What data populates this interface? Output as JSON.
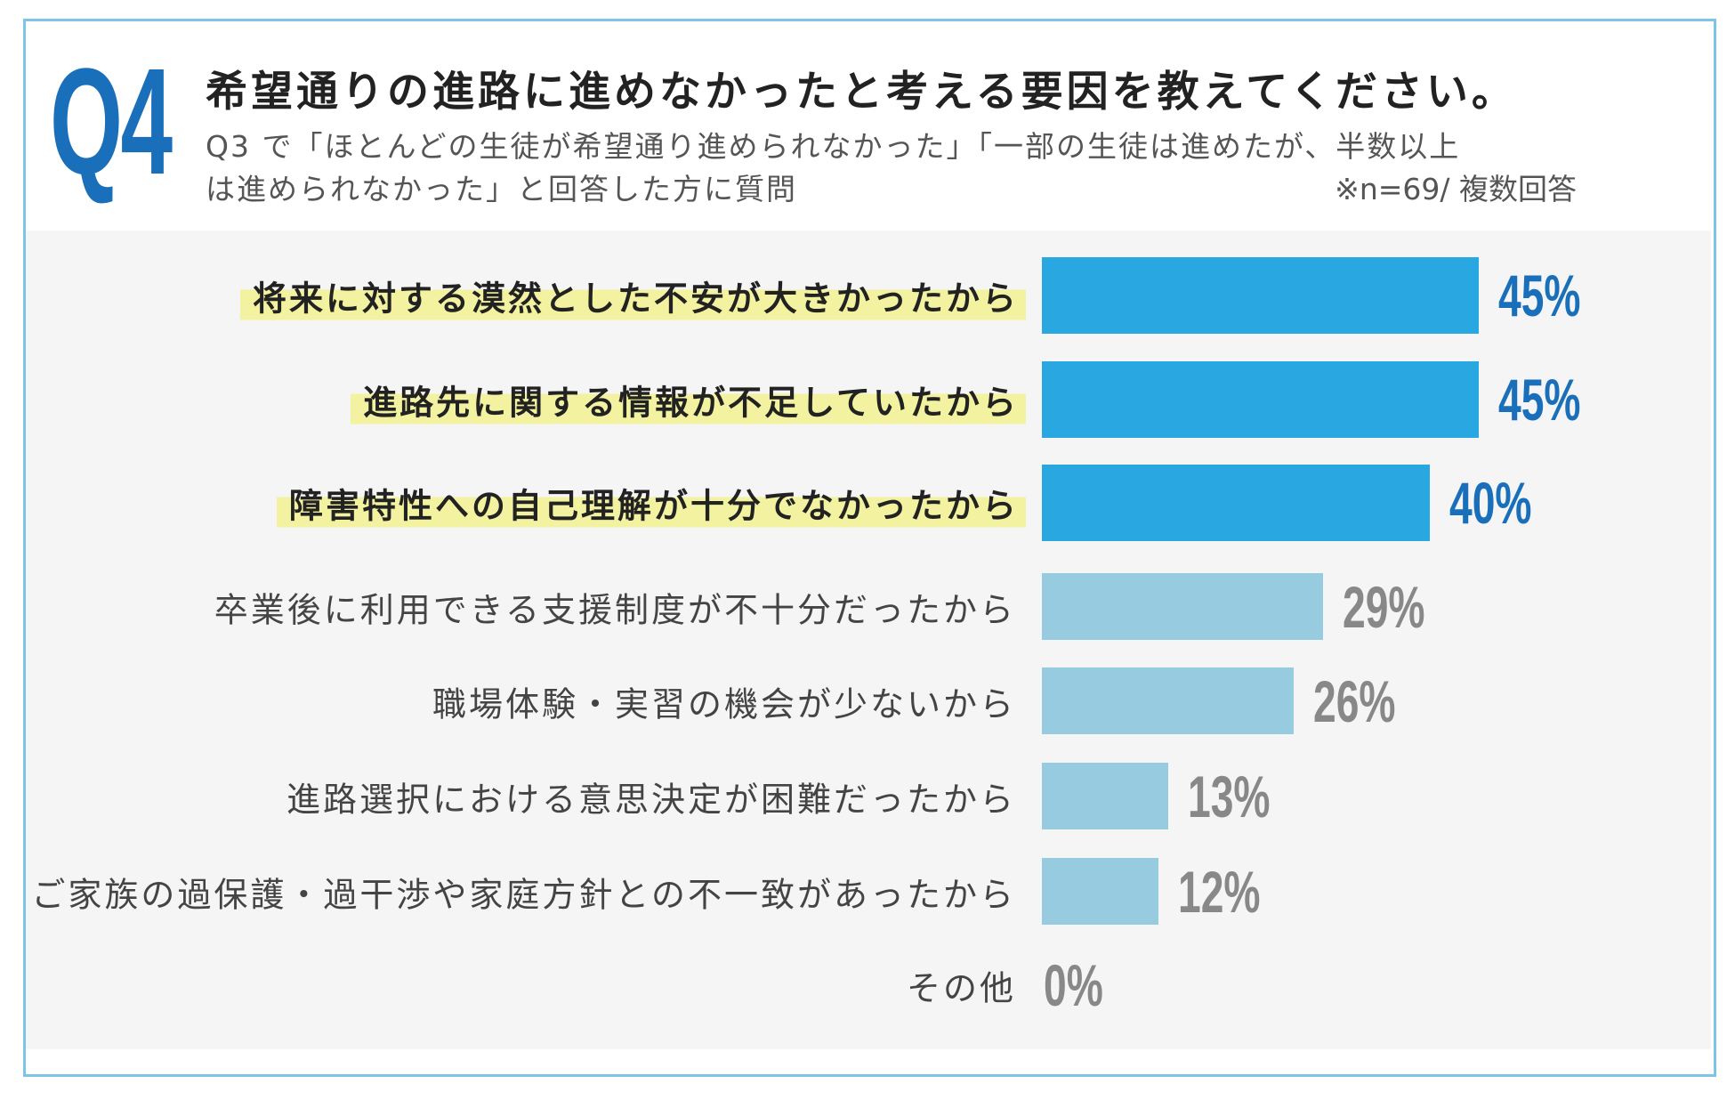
{
  "header": {
    "q_number": "Q4",
    "title": "希望通りの進路に進めなかったと考える要因を教えてください。",
    "subtitle_line1": "Q3 で「ほとんどの生徒が希望通り進められなかった」「一部の生徒は進めたが、半数以上",
    "subtitle_line2": "は進められなかった」と回答した方に質問",
    "note": "※n=69/ 複数回答"
  },
  "colors": {
    "accent": "#1a6fba",
    "bar_top": "#29a7e1",
    "bar_other": "#96cbe0",
    "value_other": "#888888",
    "highlight": "#f2f2a0",
    "frame": "#7cc4e8"
  },
  "chart_data": {
    "type": "bar",
    "orientation": "horizontal",
    "title": "希望通りの進路に進めなかったと考える要因を教えてください。",
    "unit": "%",
    "xlim": [
      0,
      45
    ],
    "grid": false,
    "categories": [
      "将来に対する漠然とした不安が大きかったから",
      "進路先に関する情報が不足していたから",
      "障害特性への自己理解が十分でなかったから",
      "卒業後に利用できる支援制度が不十分だったから",
      "職場体験・実習の機会が少ないから",
      "進路選択における意思決定が困難だったから",
      "ご家族の過保護・過干渉や家庭方針との不一致があったから",
      "その他"
    ],
    "values": [
      45,
      45,
      40,
      29,
      26,
      13,
      12,
      0
    ],
    "value_labels": [
      "45%",
      "45%",
      "40%",
      "29%",
      "26%",
      "13%",
      "12%",
      "0%"
    ],
    "highlighted": [
      true,
      true,
      true,
      false,
      false,
      false,
      false,
      false
    ]
  }
}
